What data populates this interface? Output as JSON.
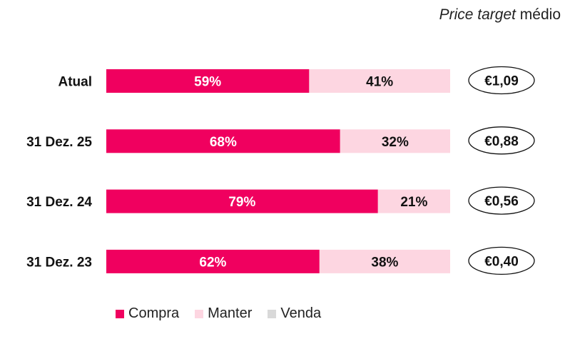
{
  "header": {
    "italic": "Price target",
    "rest": " médio"
  },
  "colors": {
    "compra": "#F0005F",
    "manter": "#FDD6E1",
    "venda": "#D9D9D9"
  },
  "chart_data": {
    "type": "bar",
    "orientation": "horizontal-stacked-100",
    "categories": [
      "Atual",
      "31 Dez. 25",
      "31 Dez. 24",
      "31 Dez. 23"
    ],
    "series": [
      {
        "name": "Compra",
        "values": [
          59,
          68,
          79,
          62
        ]
      },
      {
        "name": "Manter",
        "values": [
          41,
          32,
          21,
          38
        ]
      },
      {
        "name": "Venda",
        "values": [
          0,
          0,
          0,
          0
        ]
      }
    ],
    "labels": {
      "compra": [
        "59%",
        "68%",
        "79%",
        "62%"
      ],
      "manter": [
        "41%",
        "32%",
        "21%",
        "38%"
      ]
    },
    "price_targets": [
      "€1,09",
      "€0,88",
      "€0,56",
      "€0,40"
    ],
    "xlim": [
      0,
      100
    ],
    "legend_position": "bottom-left"
  }
}
